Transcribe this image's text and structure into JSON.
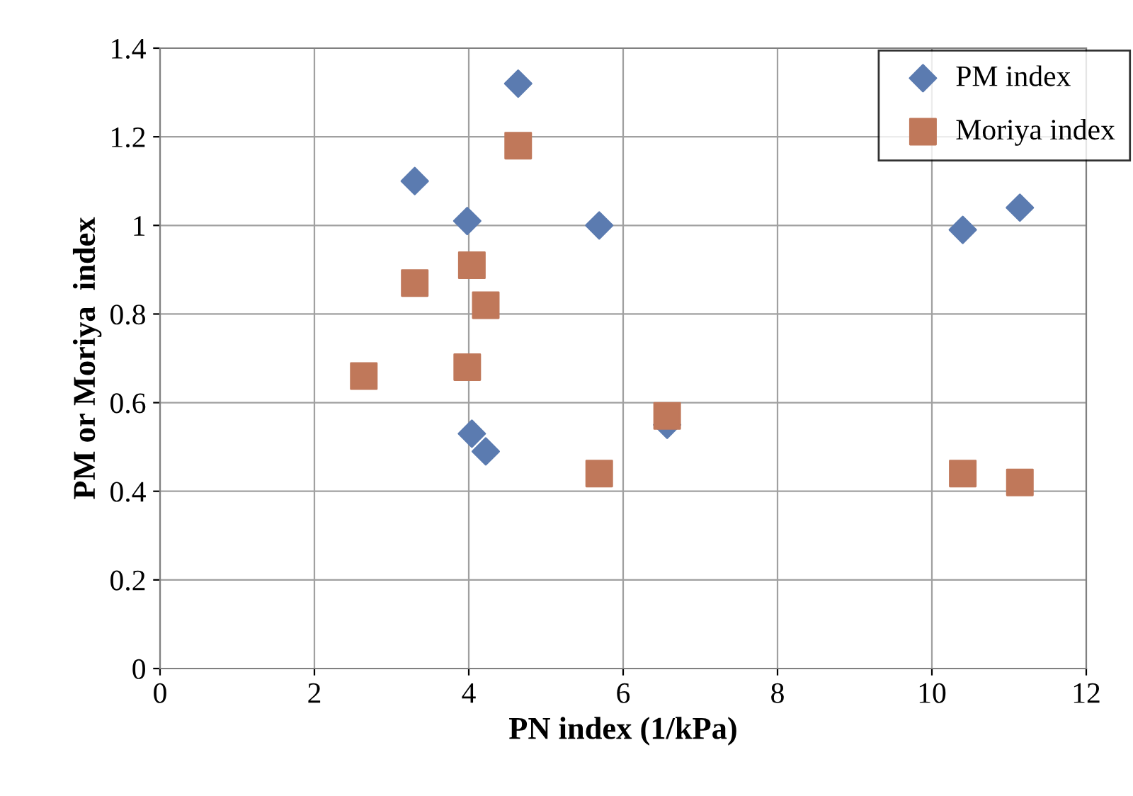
{
  "chart_data": {
    "type": "scatter",
    "xlabel": "PN index (1/kPa)",
    "ylabel": "PM or Moriya  index",
    "xlim": [
      0,
      12
    ],
    "xticks": [
      0,
      2,
      4,
      6,
      8,
      10,
      12
    ],
    "ylim": [
      0,
      1.4
    ],
    "yticks": [
      0,
      {
        "value": 0.2,
        "label": "0.2"
      },
      {
        "value": 0.4,
        "label": "0.4"
      },
      {
        "value": 0.6,
        "label": "0.6"
      },
      {
        "value": 0.8,
        "label": "0.8"
      },
      1,
      {
        "value": 1.2,
        "label": "1.2"
      },
      {
        "value": 1.4,
        "label": "1.4"
      }
    ],
    "grid": true,
    "legend": "top right",
    "series": [
      {
        "name": "PM index",
        "color": "#5b7bb0",
        "marker": "diamond",
        "x": [
          3.3,
          3.98,
          4.64,
          5.69,
          10.4,
          11.14,
          4.04,
          4.22,
          6.57
        ],
        "values": [
          1.1,
          1.01,
          1.32,
          1.0,
          0.99,
          1.04,
          0.53,
          0.49,
          0.55
        ]
      },
      {
        "name": "Moriya index",
        "color": "#c0785a",
        "marker": "square",
        "x": [
          2.64,
          3.3,
          3.98,
          4.04,
          4.22,
          4.64,
          5.69,
          6.57,
          10.4,
          11.14
        ],
        "values": [
          0.66,
          0.87,
          0.68,
          0.91,
          0.82,
          1.18,
          0.44,
          0.57,
          0.44,
          0.42
        ]
      }
    ]
  }
}
